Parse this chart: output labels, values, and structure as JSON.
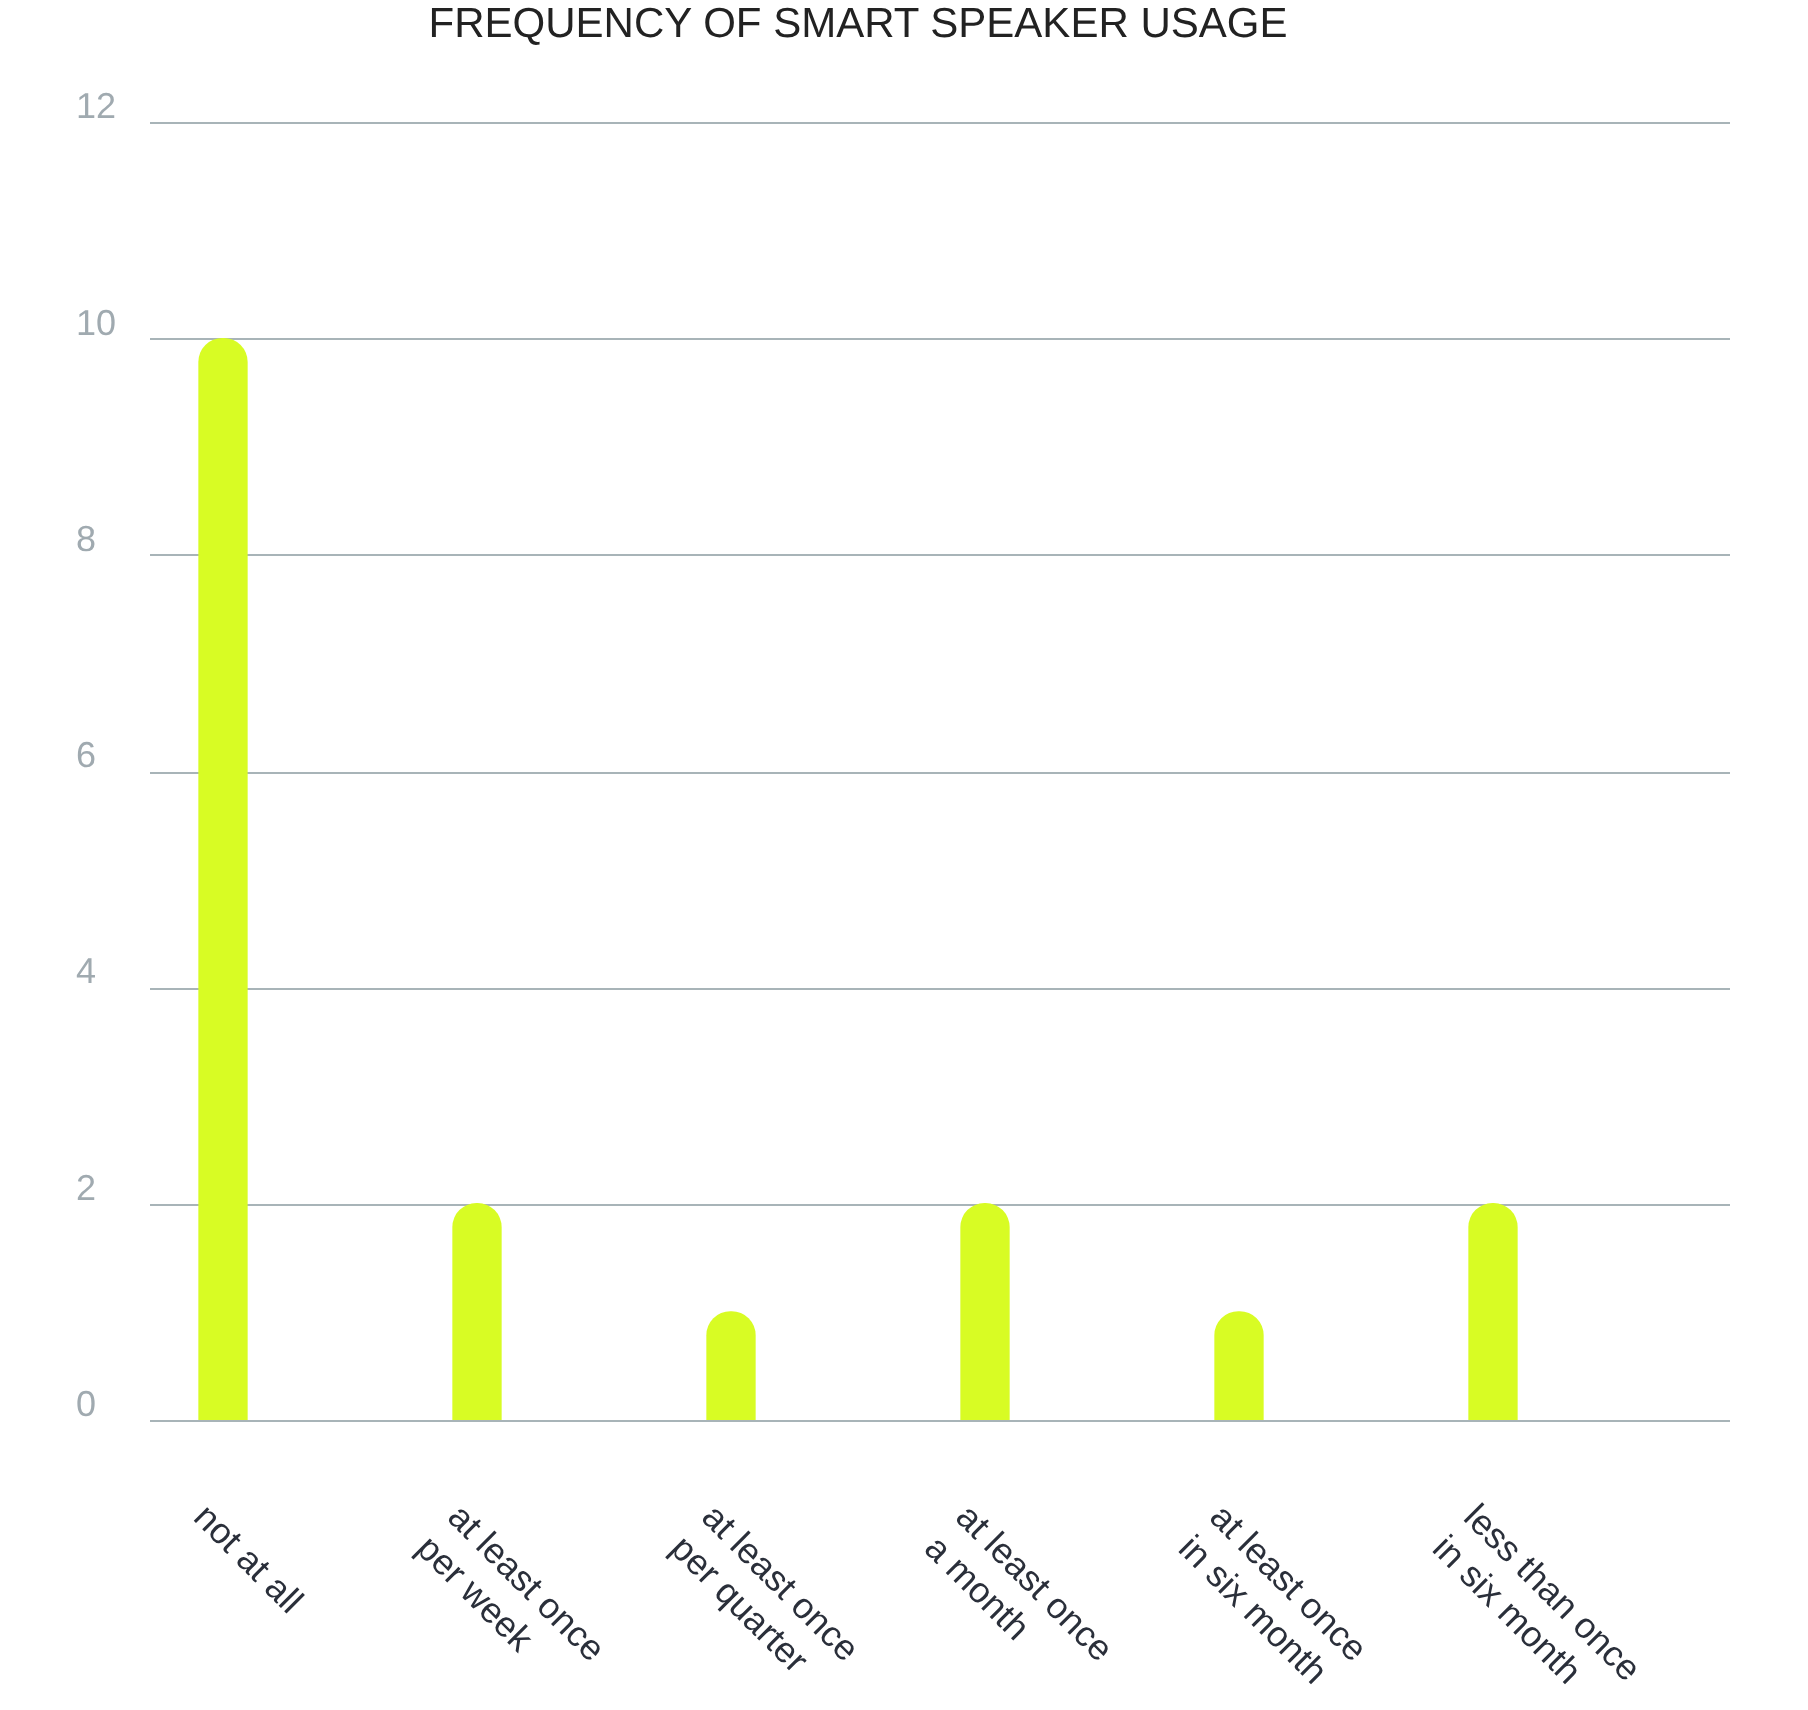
{
  "chart_data": {
    "type": "bar",
    "title": "FREQUENCY OF SMART SPEAKER USAGE",
    "categories": [
      "not at all",
      "at least once\nper week",
      "at least once\nper quarter",
      "at least once\na month",
      "at least once\nin six month",
      "less than once\nin six month"
    ],
    "values": [
      10,
      2,
      1,
      2,
      1,
      2
    ],
    "color": "#d8fc24",
    "ylim": [
      0,
      12
    ],
    "yticks": [
      0,
      2,
      4,
      6,
      8,
      10,
      12
    ],
    "grid": "y",
    "legend": false
  }
}
